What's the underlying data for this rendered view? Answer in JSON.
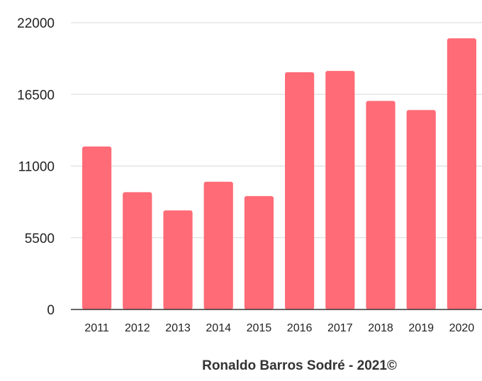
{
  "chart_data": {
    "type": "bar",
    "title": "",
    "xlabel": "",
    "ylabel": "",
    "categories": [
      "2011",
      "2012",
      "2013",
      "2014",
      "2015",
      "2016",
      "2017",
      "2018",
      "2019",
      "2020"
    ],
    "values": [
      12500,
      9000,
      7600,
      9800,
      8700,
      18200,
      18300,
      16000,
      15300,
      20800
    ],
    "ylim": [
      0,
      22000
    ],
    "yticks": [
      "0",
      "5500",
      "11000",
      "16500",
      "22000"
    ],
    "grid": true,
    "legend": "none",
    "bar_color": "#ff6b76"
  },
  "credit": "Ronaldo Barros Sodré - 2021©"
}
